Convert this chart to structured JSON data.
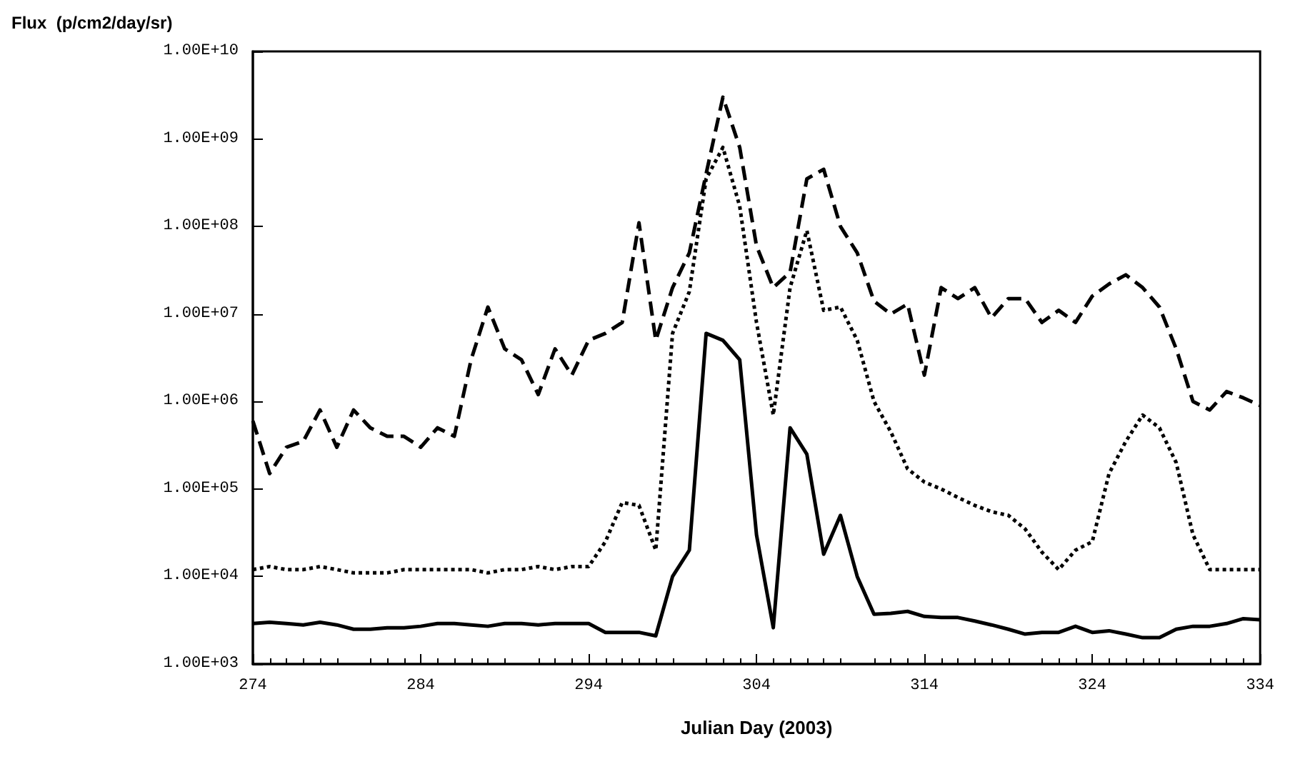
{
  "chart_data": {
    "type": "line",
    "ylabel": "Flux  (p/cm2/day/sr)",
    "xlabel": "Julian Day (2003)",
    "x": [
      274,
      275,
      276,
      277,
      278,
      279,
      280,
      281,
      282,
      283,
      284,
      285,
      286,
      287,
      288,
      289,
      290,
      291,
      292,
      293,
      294,
      295,
      296,
      297,
      298,
      299,
      300,
      301,
      302,
      303,
      304,
      305,
      306,
      307,
      308,
      309,
      310,
      311,
      312,
      313,
      314,
      315,
      316,
      317,
      318,
      319,
      320,
      321,
      322,
      323,
      324,
      325,
      326,
      327,
      328,
      329,
      330,
      331,
      332,
      333,
      334
    ],
    "series": [
      {
        "color": "#000000",
        "line_style": "dashed",
        "values": [
          600000,
          150000,
          300000,
          350000,
          800000,
          300000,
          800000,
          500000,
          400000,
          400000,
          300000,
          500000,
          400000,
          3000000,
          12000000,
          4000000,
          3000000,
          1200000,
          4000000,
          2000000,
          5000000,
          6000000,
          8000000,
          110000000,
          5000000,
          20000000,
          50000000,
          400000000,
          3000000000,
          800000000,
          60000000,
          20000000,
          30000000,
          350000000,
          450000000,
          100000000,
          50000000,
          14000000,
          10000000,
          13000000,
          2000000,
          20000000,
          15000000,
          20000000,
          9000000,
          15000000,
          15000000,
          8000000,
          11000000,
          8000000,
          16000000,
          22000000,
          28000000,
          20000000,
          12000000,
          4000000,
          1000000,
          800000,
          1300000,
          1100000,
          900000
        ]
      },
      {
        "color": "#000000",
        "line_style": "dotted",
        "values": [
          12000,
          13000,
          12000,
          12000,
          13000,
          12000,
          11000,
          11000,
          11000,
          12000,
          12000,
          12000,
          12000,
          12000,
          11000,
          12000,
          12000,
          13000,
          12000,
          13000,
          13000,
          25000,
          70000,
          65000,
          20000,
          6000000,
          18000000,
          350000000,
          800000000,
          170000000,
          8000000,
          700000,
          20000000,
          90000000,
          11000000,
          12000000,
          5000000,
          1000000,
          450000,
          170000,
          120000,
          100000,
          80000,
          65000,
          55000,
          50000,
          35000,
          19000,
          12000,
          20000,
          25000,
          150000,
          350000,
          700000,
          500000,
          200000,
          30000,
          12000,
          12000,
          12000,
          12000
        ]
      },
      {
        "color": "#000000",
        "line_style": "solid",
        "values": [
          2900,
          3000,
          2900,
          2800,
          3000,
          2800,
          2500,
          2500,
          2600,
          2600,
          2700,
          2900,
          2900,
          2800,
          2700,
          2900,
          2900,
          2800,
          2900,
          2900,
          2900,
          2300,
          2300,
          2300,
          2100,
          10000,
          20000,
          6000000,
          5000000,
          3000000,
          30000,
          2600,
          500000,
          250000,
          18000,
          50000,
          10000,
          3700,
          3800,
          4000,
          3500,
          3400,
          3400,
          3100,
          2800,
          2500,
          2200,
          2300,
          2300,
          2700,
          2300,
          2400,
          2200,
          2000,
          2000,
          2500,
          2700,
          2700,
          2900,
          3300,
          3200
        ]
      }
    ],
    "log": "y",
    "xlim": [
      274,
      334
    ],
    "xticks": [
      274,
      284,
      294,
      304,
      314,
      324,
      334
    ],
    "ylim": [
      1000,
      10000000000
    ],
    "yticks": [
      {
        "value": 1000,
        "label": "1.00E+03"
      },
      {
        "value": 10000,
        "label": "1.00E+04"
      },
      {
        "value": 100000,
        "label": "1.00E+05"
      },
      {
        "value": 1000000,
        "label": "1.00E+06"
      },
      {
        "value": 10000000,
        "label": "1.00E+07"
      },
      {
        "value": 100000000,
        "label": "1.00E+08"
      },
      {
        "value": 1000000000,
        "label": "1.00E+09"
      },
      {
        "value": 10000000000,
        "label": "1.00E+10"
      }
    ],
    "marker": "none"
  }
}
